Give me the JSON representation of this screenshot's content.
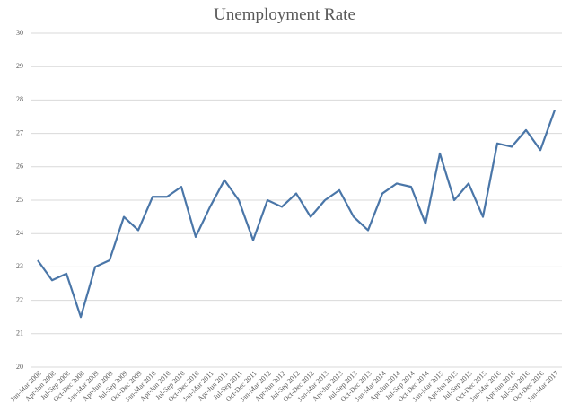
{
  "chart_data": {
    "type": "line",
    "title": "Unemployment Rate",
    "categories": [
      "Jan-Mar 2008",
      "Apr-Jun 2008",
      "Jul-Sep 2008",
      "Oct-Dec 2008",
      "Jan-Mar 2009",
      "Apr-Jun 2009",
      "Jul-Sep 2009",
      "Oct-Dec 2009",
      "Jan-Mar 2010",
      "Apr-Jun 2010",
      "Jul-Sep 2010",
      "Oct-Dec 2010",
      "Jan-Mar 2011",
      "Apr-Jun 2011",
      "Jul-Sep 2011",
      "Oct-Dec 2011",
      "Jan-Mar 2012",
      "Apr-Jun 2012",
      "Jul-Sep 2012",
      "Oct-Dec 2012",
      "Jan-Mar 2013",
      "Apr-Jun 2013",
      "Jul-Sep 2013",
      "Oct-Dec 2013",
      "Jan-Mar 2014",
      "Apr-Jun 2014",
      "Jul-Sep 2014",
      "Oct-Dec 2014",
      "Jan-Mar 2015",
      "Apr-Jun 2015",
      "Jul-Sep 2015",
      "Oct-Dec 2015",
      "Jan-Mar 2016",
      "Apr-Jun 2016",
      "Jul-Sep 2016",
      "Oct-Dec 2016",
      "Jan-Mar 2017"
    ],
    "values": [
      23.2,
      22.6,
      22.8,
      21.5,
      23.0,
      23.2,
      24.5,
      24.1,
      25.1,
      25.1,
      25.4,
      23.9,
      24.8,
      25.6,
      25.0,
      23.8,
      25.0,
      24.8,
      25.2,
      24.5,
      25.0,
      25.3,
      24.5,
      24.1,
      25.2,
      25.5,
      25.4,
      24.3,
      26.4,
      25.0,
      25.5,
      24.5,
      26.7,
      26.6,
      27.1,
      26.5,
      27.7
    ],
    "color": "#4a76a8",
    "ylim": [
      20,
      30
    ],
    "yticks": [
      20,
      21,
      22,
      23,
      24,
      25,
      26,
      27,
      28,
      29,
      30
    ],
    "grid": true
  }
}
